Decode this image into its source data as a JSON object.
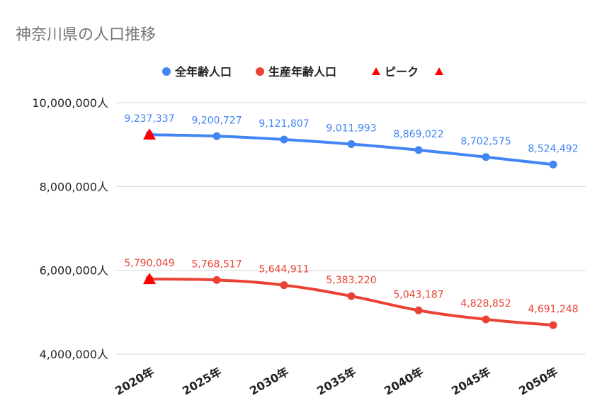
{
  "chart_data": {
    "type": "line",
    "title": "神奈川県の人口推移",
    "categories": [
      "2020年",
      "2025年",
      "2030年",
      "2035年",
      "2040年",
      "2045年",
      "2050年"
    ],
    "series": [
      {
        "name": "全年齢人口",
        "color": "#4285f4",
        "values": [
          9237337,
          9200727,
          9121807,
          9011993,
          8869022,
          8702575,
          8524492
        ],
        "labels": [
          "9,237,337",
          "9,200,727",
          "9,121,807",
          "9,011,993",
          "8,869,022",
          "8,702,575",
          "8,524,492"
        ]
      },
      {
        "name": "生産年齢人口",
        "color": "#ea4335",
        "values": [
          5790049,
          5768517,
          5644911,
          5383220,
          5043187,
          4828852,
          4691248
        ],
        "labels": [
          "5,790,049",
          "5,768,517",
          "5,644,911",
          "5,383,220",
          "5,043,187",
          "4,828,852",
          "4,691,248"
        ]
      }
    ],
    "peaks": {
      "name": "ピーク",
      "color": "#ff0000",
      "points": [
        {
          "category": "2020年",
          "value": 9237337
        },
        {
          "category": "2020年",
          "value": 5790049
        }
      ]
    },
    "ylim": [
      4000000,
      10000000
    ],
    "yticks": [
      {
        "value": 4000000,
        "label": "4,000,000人"
      },
      {
        "value": 6000000,
        "label": "6,000,000人"
      },
      {
        "value": 8000000,
        "label": "8,000,000人"
      },
      {
        "value": 10000000,
        "label": "10,000,000人"
      }
    ],
    "legend_position": "top",
    "grid": true,
    "xlabel": "",
    "ylabel": ""
  }
}
